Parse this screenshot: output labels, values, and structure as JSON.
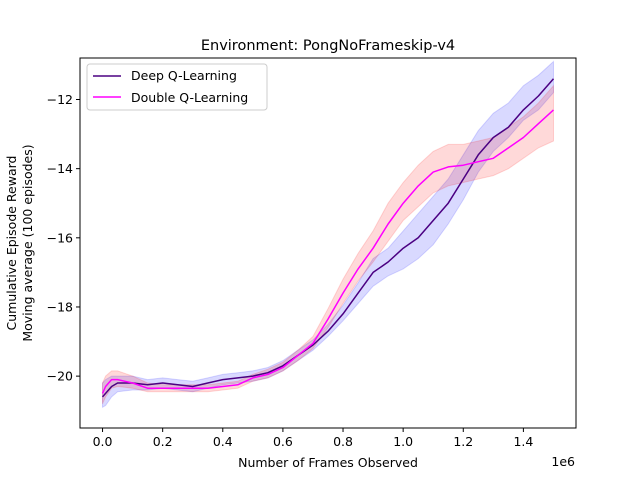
{
  "chart_data": {
    "type": "line",
    "title": "Environment: PongNoFrameskip-v4",
    "xlabel": "Number of Frames Observed",
    "x_offset_text": "1e6",
    "ylabel_lines": [
      "Cumulative Episode Reward",
      "Moving average (100 episodes)"
    ],
    "xlim": [
      -0.075,
      1.575
    ],
    "ylim": [
      -21.5,
      -10.8
    ],
    "x_ticks": [
      0.0,
      0.2,
      0.4,
      0.6,
      0.8,
      1.0,
      1.2,
      1.4
    ],
    "x_tick_labels": [
      "0.0",
      "0.2",
      "0.4",
      "0.6",
      "0.8",
      "1.0",
      "1.2",
      "1.4"
    ],
    "y_ticks": [
      -20,
      -18,
      -16,
      -14,
      -12
    ],
    "y_tick_labels": [
      "−20",
      "−18",
      "−16",
      "−14",
      "−12"
    ],
    "grid": false,
    "legend_position": "top-left",
    "series": [
      {
        "name": "Deep Q-Learning",
        "color": "#4b0082",
        "band_color": "#0000ff",
        "x": [
          0.0,
          0.01,
          0.03,
          0.05,
          0.1,
          0.15,
          0.2,
          0.25,
          0.3,
          0.35,
          0.4,
          0.45,
          0.5,
          0.55,
          0.6,
          0.65,
          0.7,
          0.75,
          0.8,
          0.85,
          0.9,
          0.95,
          1.0,
          1.05,
          1.1,
          1.15,
          1.2,
          1.25,
          1.3,
          1.35,
          1.4,
          1.45,
          1.5
        ],
        "y": [
          -20.6,
          -20.5,
          -20.3,
          -20.2,
          -20.2,
          -20.25,
          -20.2,
          -20.25,
          -20.3,
          -20.2,
          -20.1,
          -20.05,
          -20.0,
          -19.9,
          -19.7,
          -19.4,
          -19.1,
          -18.7,
          -18.2,
          -17.6,
          -17.0,
          -16.7,
          -16.3,
          -16.0,
          -15.5,
          -15.0,
          -14.3,
          -13.6,
          -13.1,
          -12.8,
          -12.3,
          -11.9,
          -11.4
        ],
        "lower": [
          -20.9,
          -20.85,
          -20.6,
          -20.45,
          -20.4,
          -20.4,
          -20.35,
          -20.4,
          -20.45,
          -20.35,
          -20.25,
          -20.2,
          -20.15,
          -20.05,
          -19.85,
          -19.55,
          -19.25,
          -18.85,
          -18.4,
          -17.9,
          -17.4,
          -17.1,
          -16.9,
          -16.6,
          -16.2,
          -15.6,
          -14.9,
          -14.1,
          -13.5,
          -13.1,
          -12.6,
          -12.3,
          -11.8
        ],
        "upper": [
          -20.2,
          -20.1,
          -20.0,
          -20.0,
          -20.0,
          -20.1,
          -20.05,
          -20.1,
          -20.15,
          -20.05,
          -19.95,
          -19.9,
          -19.85,
          -19.75,
          -19.55,
          -19.25,
          -18.95,
          -18.5,
          -17.95,
          -17.3,
          -16.6,
          -16.3,
          -15.8,
          -15.3,
          -14.8,
          -14.3,
          -13.6,
          -12.9,
          -12.4,
          -12.1,
          -11.6,
          -11.3,
          -10.9
        ]
      },
      {
        "name": "Double Q-Learning",
        "color": "#ff00ff",
        "band_color": "#ff0000",
        "x": [
          0.0,
          0.01,
          0.03,
          0.05,
          0.1,
          0.15,
          0.2,
          0.25,
          0.3,
          0.35,
          0.4,
          0.45,
          0.5,
          0.55,
          0.6,
          0.65,
          0.7,
          0.75,
          0.8,
          0.85,
          0.9,
          0.95,
          1.0,
          1.05,
          1.1,
          1.15,
          1.2,
          1.25,
          1.3,
          1.35,
          1.4,
          1.45,
          1.5
        ],
        "y": [
          -20.5,
          -20.3,
          -20.1,
          -20.1,
          -20.2,
          -20.35,
          -20.35,
          -20.35,
          -20.35,
          -20.35,
          -20.3,
          -20.25,
          -20.05,
          -19.95,
          -19.75,
          -19.4,
          -19.05,
          -18.35,
          -17.6,
          -16.9,
          -16.3,
          -15.6,
          -15.0,
          -14.5,
          -14.1,
          -13.95,
          -13.9,
          -13.8,
          -13.7,
          -13.4,
          -13.1,
          -12.7,
          -12.3
        ],
        "lower": [
          -20.8,
          -20.6,
          -20.35,
          -20.3,
          -20.35,
          -20.45,
          -20.45,
          -20.45,
          -20.45,
          -20.45,
          -20.4,
          -20.35,
          -20.15,
          -20.05,
          -19.85,
          -19.55,
          -19.2,
          -18.6,
          -17.9,
          -17.25,
          -16.7,
          -16.1,
          -15.5,
          -15.1,
          -14.7,
          -14.5,
          -14.4,
          -14.3,
          -14.2,
          -14.0,
          -13.7,
          -13.4,
          -13.2
        ],
        "upper": [
          -20.2,
          -20.0,
          -19.85,
          -19.85,
          -20.0,
          -20.2,
          -20.25,
          -20.25,
          -20.25,
          -20.25,
          -20.2,
          -20.15,
          -19.95,
          -19.8,
          -19.6,
          -19.25,
          -18.85,
          -18.05,
          -17.2,
          -16.45,
          -15.8,
          -15.0,
          -14.4,
          -13.9,
          -13.5,
          -13.3,
          -13.3,
          -13.2,
          -13.1,
          -12.8,
          -12.5,
          -12.1,
          -11.6
        ]
      }
    ]
  }
}
